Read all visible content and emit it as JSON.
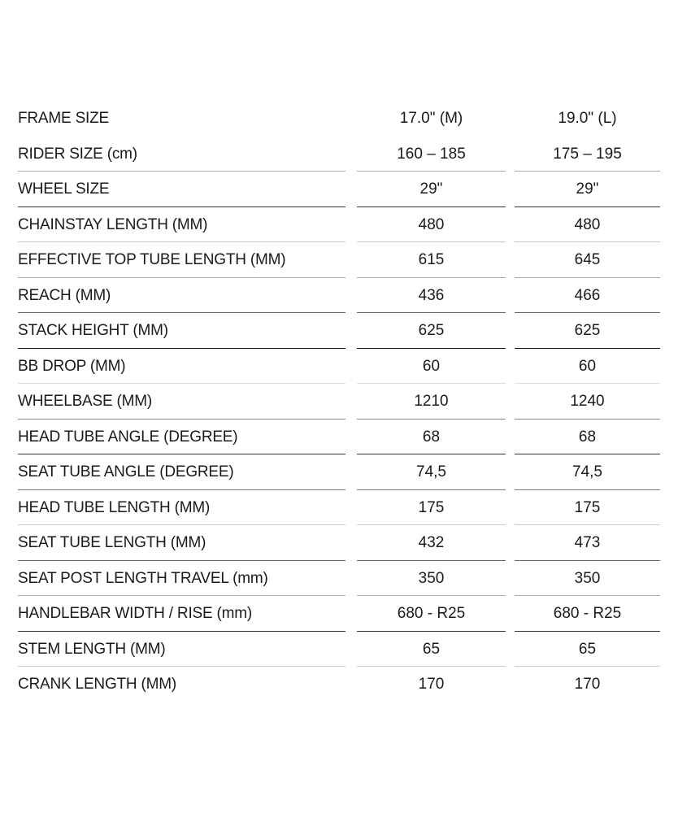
{
  "rows": [
    {
      "label": "FRAME SIZE",
      "m": "17.0\" (M)",
      "l": "19.0\" (L)"
    },
    {
      "label": "RIDER SIZE (cm)",
      "m": "160 – 185",
      "l": "175 – 195"
    },
    {
      "label": "WHEEL SIZE",
      "m": "29\"",
      "l": "29\""
    },
    {
      "label": "CHAINSTAY LENGTH (MM)",
      "m": "480",
      "l": "480"
    },
    {
      "label": "EFFECTIVE TOP TUBE LENGTH (MM)",
      "m": "615",
      "l": "645"
    },
    {
      "label": "REACH (MM)",
      "m": "436",
      "l": "466"
    },
    {
      "label": "STACK HEIGHT (MM)",
      "m": "625",
      "l": "625"
    },
    {
      "label": "BB DROP (MM)",
      "m": "60",
      "l": "60"
    },
    {
      "label": "WHEELBASE (MM)",
      "m": "1210",
      "l": "1240"
    },
    {
      "label": "HEAD TUBE ANGLE (DEGREE)",
      "m": "68",
      "l": "68"
    },
    {
      "label": "SEAT TUBE ANGLE (DEGREE)",
      "m": "74,5",
      "l": "74,5"
    },
    {
      "label": "HEAD TUBE LENGTH (MM)",
      "m": "175",
      "l": "175"
    },
    {
      "label": "SEAT TUBE LENGTH (MM)",
      "m": "432",
      "l": "473"
    },
    {
      "label": "SEAT POST LENGTH TRAVEL (mm)",
      "m": "350",
      "l": "350"
    },
    {
      "label": "HANDLEBAR WIDTH / RISE (mm)",
      "m": "680 - R25",
      "l": "680 - R25"
    },
    {
      "label": "STEM LENGTH (MM)",
      "m": "65",
      "l": "65"
    },
    {
      "label": "CRANK LENGTH (MM)",
      "m": "170",
      "l": "170"
    }
  ]
}
